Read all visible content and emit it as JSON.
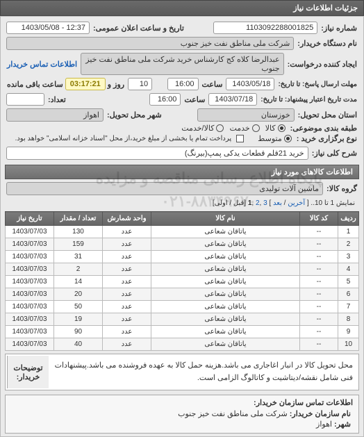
{
  "header": {
    "title": "جزئیات اطلاعات نیاز"
  },
  "form": {
    "need_no_label": "شماره نیاز:",
    "need_no": "1103092288001825",
    "announce_label": "تاریخ و ساعت اعلان عمومی:",
    "announce_value": "12:37 - 1403/05/08",
    "buyer_org_label": "نام دستگاه خریدار:",
    "buyer_org": "شرکت ملی مناطق نفت خیز جنوب",
    "requester_label": "ایجاد کننده درخواست:",
    "requester": "عبدالرضا کلاه کج  کارشناس خرید شرکت ملی مناطق نفت خیز جنوب",
    "buyer_contact_label": "اطلاعات تماس خریدار",
    "deadline_send_label": "مهلت ارسال پاسخ: تا تاریخ:",
    "deadline_send_date": "1403/05/18",
    "hour_label": "ساعت",
    "deadline_send_hour": "16:00",
    "remain_days": "10",
    "days_and_label": "روز و",
    "countdown": "03:17:21",
    "remain_label": "ساعت باقی مانده",
    "validity_label": "مدت تاریخ اعتبار پیشنهاد: تا تاریخ:",
    "validity_date": "1403/07/18",
    "validity_hour": "16:00",
    "qty_label": "تعداد:",
    "qty_field": "",
    "delivery_state_label": "استان محل تحویل:",
    "delivery_state": "خوزستان",
    "delivery_city_label": "شهر محل تحویل:",
    "delivery_city": "اهواز",
    "pkg_label": "طبقه بندی موضوعی:",
    "pkg_opts": {
      "kala": "کالا",
      "khadamat": "خدمت",
      "both": "کالا/خدمت"
    },
    "pay_type_label": "نوع برگزاری خرید :",
    "pay_opts": {
      "mid": "متوسط"
    },
    "pay_note": "پرداخت تمام یا بخشی از مبلغ خرید،از محل \"اسناد خزانه اسلامی\" خواهد بود.",
    "subject_label": "شرح کلی نیاز:",
    "subject": "خرید 21قلم قطعات یدکی پمپ(بیرنگ)"
  },
  "items_section": {
    "title": "اطلاعات کالاهای مورد نیاز",
    "group_label": "گروه کالا:",
    "group_value": "ماشین آلات تولیدی",
    "pager_text": "نمایش 1 تا 10.. [ آخرین / بعد ] 3 ,2 ,1 [قبل / اولی]",
    "columns": [
      "ردیف",
      "کد کالا",
      "نام کالا",
      "واحد شمارش",
      "تعداد / مقدار",
      "تاریخ نیاز"
    ],
    "rows": [
      [
        "1",
        "--",
        "یاتاقان شعاعی",
        "عدد",
        "130",
        "1403/07/03"
      ],
      [
        "2",
        "--",
        "یاتاقان شعاعی",
        "عدد",
        "159",
        "1403/07/03"
      ],
      [
        "3",
        "--",
        "یاتاقان شعاعی",
        "عدد",
        "31",
        "1403/07/03"
      ],
      [
        "4",
        "--",
        "یاتاقان شعاعی",
        "عدد",
        "2",
        "1403/07/03"
      ],
      [
        "5",
        "--",
        "یاتاقان شعاعی",
        "عدد",
        "14",
        "1403/07/03"
      ],
      [
        "6",
        "--",
        "یاتاقان شعاعی",
        "عدد",
        "20",
        "1403/07/03"
      ],
      [
        "7",
        "--",
        "یاتاقان شعاعی",
        "عدد",
        "50",
        "1403/07/03"
      ],
      [
        "8",
        "--",
        "یاتاقان شعاعی",
        "عدد",
        "19",
        "1403/07/03"
      ],
      [
        "9",
        "--",
        "یاتاقان شعاعی",
        "عدد",
        "90",
        "1403/07/03"
      ],
      [
        "10",
        "--",
        "یاتاقان شعاعی",
        "عدد",
        "40",
        "1403/07/03"
      ]
    ],
    "col_widths": [
      "30px",
      "55px",
      "auto",
      "70px",
      "70px",
      "70px"
    ]
  },
  "note": {
    "label": "توضیحات خریدار:",
    "text": "محل تحویل کالا در انبار اغاجاری می باشد.هزینه حمل کالا به عهده فروشنده می باشد.پیشنهادات فنی شامل نقشه/دیتاشیت و کاتالوگ الزامی است."
  },
  "contact": {
    "title": "اطلاعات تماس سازمان خریدار:",
    "org_label": "نام سازمان خریدار:",
    "org": "شرکت ملی مناطق نفت خیز جنوب",
    "city_label": "شهر:",
    "city": "اهواز"
  },
  "watermark": {
    "l1": "پایگاه اطلاع رسانی مناقصه و مزایده",
    "l2": "۰۲۱-۸۸۳۴۹۶۷۰"
  },
  "colors": {
    "header_bg": "#5f5f5f",
    "body_bg": "#eaeaea",
    "field_bg": "#ffffff",
    "countdown_bg": "#fff9c4",
    "link": "#1a5fb4"
  }
}
